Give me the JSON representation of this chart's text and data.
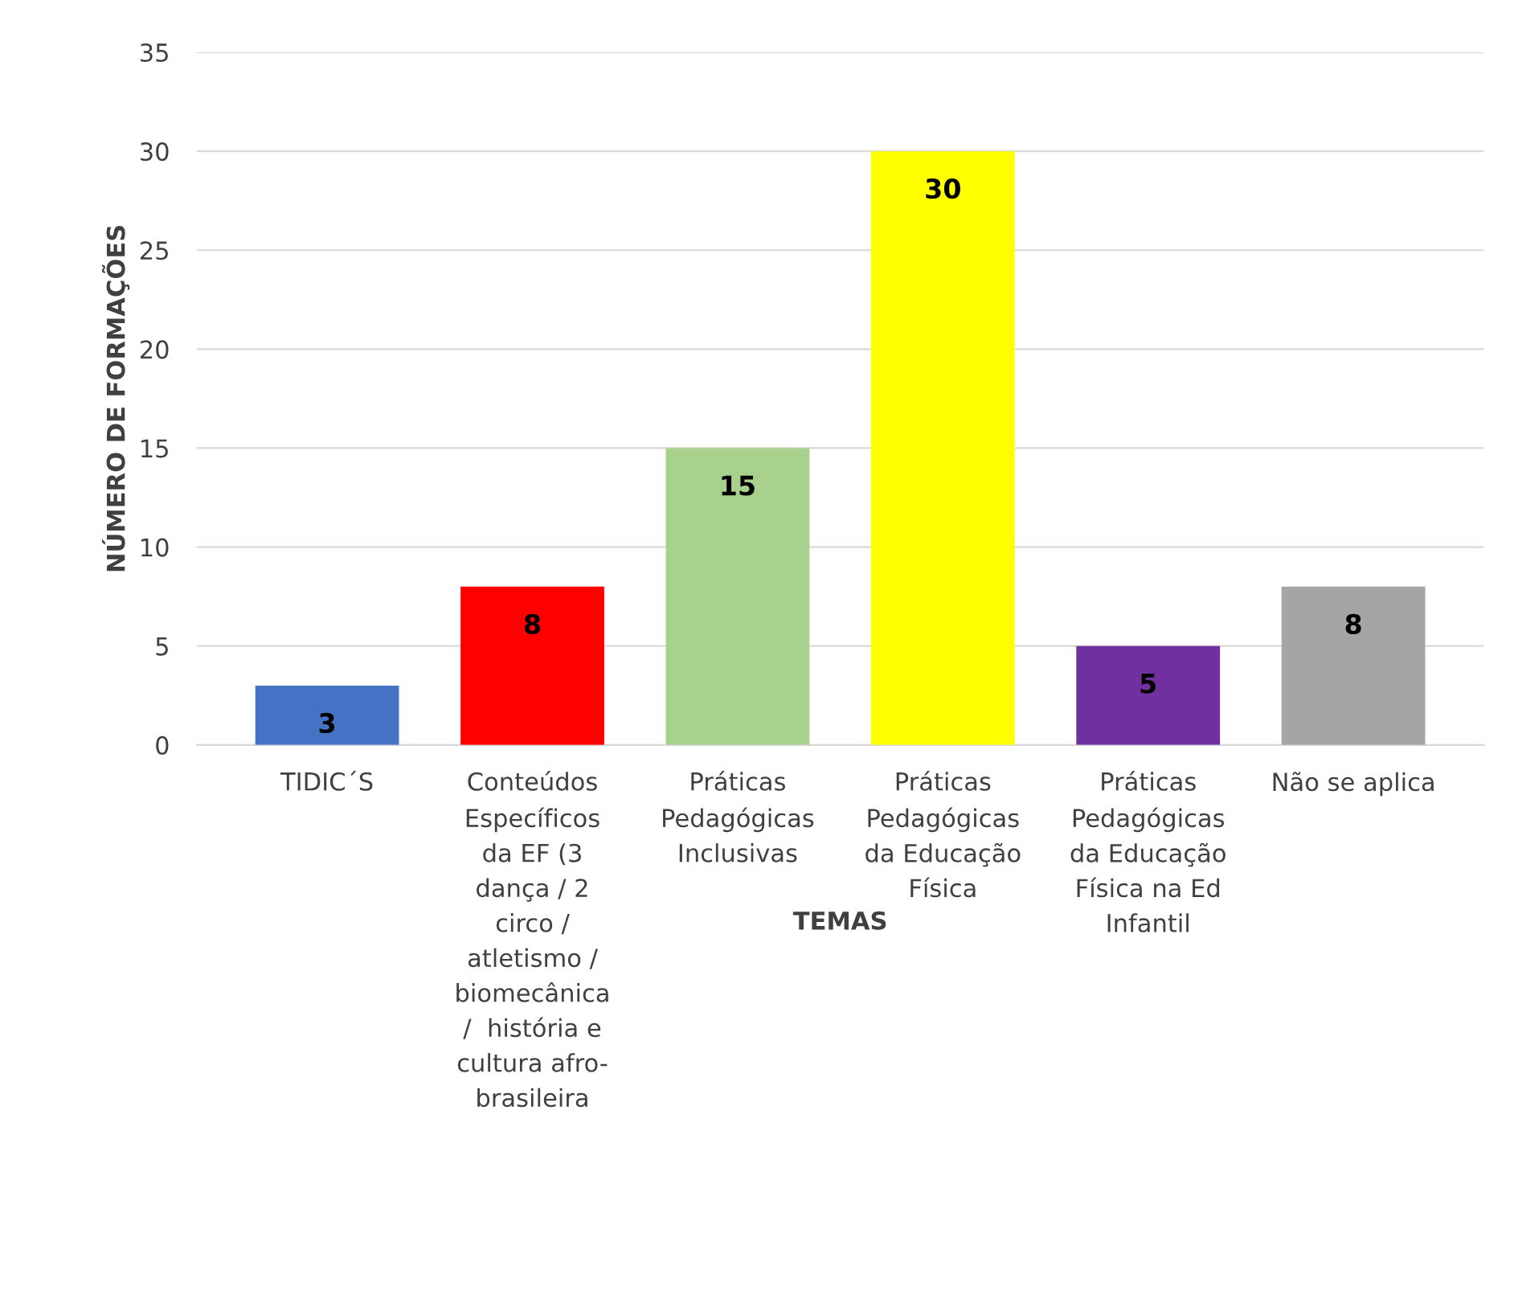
{
  "chart_data": {
    "type": "bar",
    "xlabel": "TEMAS",
    "ylabel": "NÚMERO DE FORMAÇÕES",
    "categories": [
      "TIDIC´S",
      "Conteúdos\nEspecíficos\nda EF (3\ndança / 2\ncirco /\natletismo /\nbiomecânica\n/  história e\ncultura afro-\nbrasileira",
      "Práticas\nPedagógicas\nInclusivas",
      "Práticas\nPedagógicas\nda Educação\nFísica",
      "Práticas\nPedagógicas\nda Educação\nFísica na Ed\nInfantil",
      "Não se aplica"
    ],
    "values": [
      3,
      8,
      15,
      30,
      5,
      8
    ],
    "colors": [
      "#4472c4",
      "#ff0000",
      "#a9d18e",
      "#ffff00",
      "#7030a0",
      "#a5a5a5"
    ],
    "ylim": [
      0,
      35
    ],
    "yticks": [
      0,
      5,
      10,
      15,
      20,
      25,
      30,
      35
    ],
    "grid": "y",
    "data_labels": true
  }
}
